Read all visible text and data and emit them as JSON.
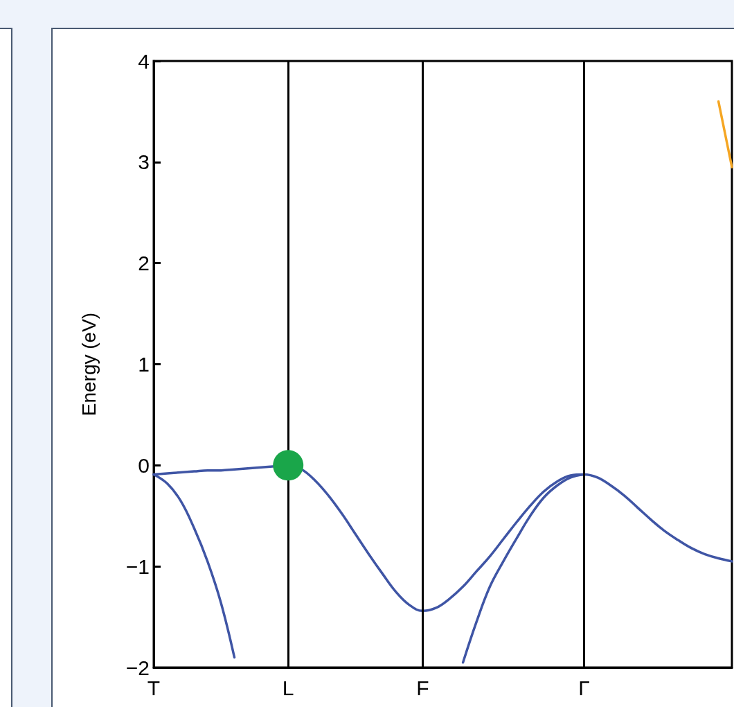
{
  "chart_data": {
    "type": "line",
    "ylabel": "Energy (eV)",
    "ylim": [
      -2,
      4
    ],
    "yticks": [
      -2,
      -1,
      0,
      1,
      2,
      3,
      4
    ],
    "categories": [
      "T",
      null,
      null,
      null,
      null,
      null,
      null,
      null,
      null,
      null,
      "L",
      null,
      null,
      null,
      null,
      null,
      null,
      null,
      null,
      null,
      "F",
      null,
      null,
      null,
      null,
      null,
      null,
      null,
      null,
      null,
      null,
      null,
      "Γ",
      null,
      null,
      null,
      null,
      null,
      null,
      null,
      null,
      null,
      null,
      null
    ],
    "grid": false,
    "marker": "none",
    "line_style": "solid",
    "ref_lines": [
      {
        "axis": "x",
        "value": "L",
        "color": "#000000"
      },
      {
        "axis": "x",
        "value": "F",
        "color": "#000000"
      },
      {
        "axis": "x",
        "value": "Γ",
        "color": "#000000"
      }
    ],
    "series": [
      {
        "color": "#3f55a5",
        "values": [
          -0.09,
          -0.08,
          -0.07,
          -0.06,
          -0.05,
          -0.05,
          -0.04,
          -0.03,
          -0.02,
          -0.01,
          0,
          -0.04,
          -0.15,
          -0.3,
          -0.48,
          -0.68,
          -0.88,
          -1.07,
          -1.25,
          -1.38,
          -1.44,
          -1.41,
          -1.32,
          -1.2,
          -1.05,
          -0.9,
          -0.73,
          -0.56,
          -0.4,
          -0.26,
          -0.16,
          -0.1,
          -0.09,
          -0.12,
          -0.2,
          -0.3,
          -0.42,
          -0.54,
          -0.65,
          -0.74,
          -0.82,
          -0.88,
          -0.92,
          -0.95
        ]
      },
      {
        "color": "#3f55a5",
        "values": [
          -0.09,
          -0.18,
          -0.35,
          -0.62,
          -0.95,
          -1.36,
          -1.9,
          null,
          null,
          null,
          null,
          null,
          null,
          null,
          null,
          null,
          null,
          null,
          null,
          null,
          null,
          null,
          null,
          null,
          null,
          null,
          null,
          null,
          null,
          null,
          null,
          null,
          null,
          null,
          null,
          null,
          null,
          null,
          null,
          null,
          null,
          null,
          null,
          null
        ]
      },
      {
        "color": "#3f55a5",
        "values": [
          null,
          null,
          null,
          null,
          null,
          null,
          null,
          null,
          null,
          null,
          null,
          null,
          null,
          null,
          null,
          null,
          null,
          null,
          null,
          null,
          null,
          null,
          null,
          -1.95,
          -1.55,
          -1.2,
          -0.95,
          -0.72,
          -0.5,
          -0.32,
          -0.2,
          -0.12,
          -0.09,
          null,
          null,
          null,
          null,
          null,
          null,
          null,
          null,
          null,
          null,
          null
        ]
      },
      {
        "color": "#f5a623",
        "values": [
          null,
          null,
          null,
          null,
          null,
          null,
          null,
          null,
          null,
          null,
          null,
          null,
          null,
          null,
          null,
          null,
          null,
          null,
          null,
          null,
          null,
          null,
          null,
          null,
          null,
          null,
          null,
          null,
          null,
          null,
          null,
          null,
          null,
          null,
          null,
          null,
          null,
          null,
          null,
          null,
          null,
          null,
          3.6,
          2.95
        ]
      },
      {
        "type": "scatter",
        "color": "#1aa64a",
        "marker": "circle",
        "x": [
          "L"
        ],
        "values": [
          0
        ]
      }
    ]
  }
}
